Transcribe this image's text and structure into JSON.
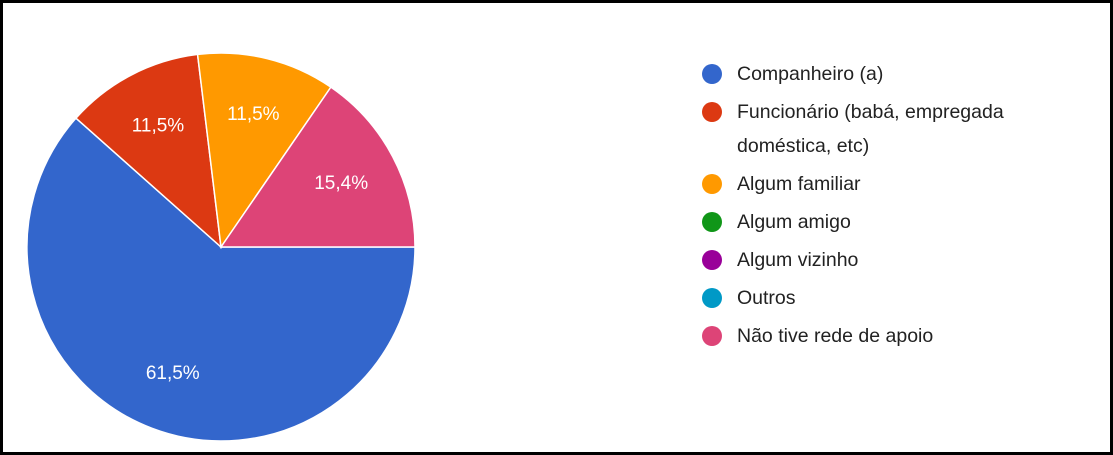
{
  "chart_data": {
    "type": "pie",
    "categories": [
      "Companheiro (a)",
      "Funcionário (babá, empregada doméstica, etc)",
      "Algum familiar",
      "Algum amigo",
      "Algum vizinho",
      "Outros",
      "Não tive rede de apoio"
    ],
    "values": [
      61.5,
      11.5,
      11.5,
      0,
      0,
      0,
      15.4
    ],
    "value_labels": [
      "61,5%",
      "11,5%",
      "11,5%",
      null,
      null,
      null,
      "15,4%"
    ],
    "colors": [
      "#3366cc",
      "#dc3912",
      "#ff9900",
      "#109618",
      "#990099",
      "#0099c6",
      "#dd4477"
    ],
    "legend": "right"
  }
}
